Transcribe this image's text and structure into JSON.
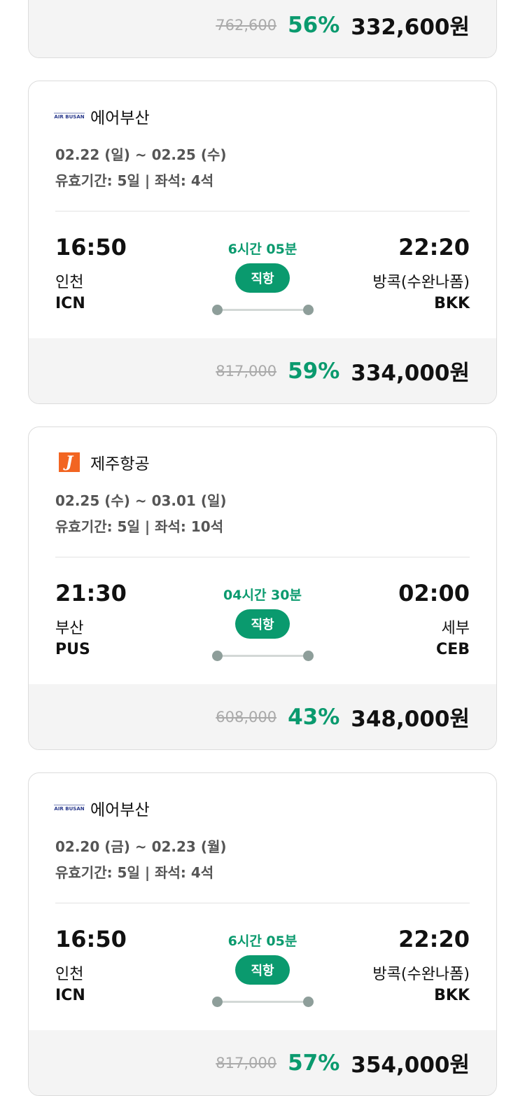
{
  "cards": [
    {
      "airline": "",
      "date": "",
      "validity": "",
      "dep_time": "",
      "dep_city": "",
      "dep_code": "",
      "duration": "",
      "type": "",
      "arr_time": "",
      "arr_city": "",
      "arr_code": "",
      "original_price": "762,600",
      "discount": "56%",
      "price": "332,600원"
    },
    {
      "airline": "에어부산",
      "logo": "AIR BUSAN",
      "date": "02.22 (일) ~ 02.25 (수)",
      "validity": "유효기간: 5일 | 좌석: 4석",
      "dep_time": "16:50",
      "dep_city": "인천",
      "dep_code": "ICN",
      "duration": "6시간 05분",
      "type": "직항",
      "arr_time": "22:20",
      "arr_city": "방콕(수완나폼)",
      "arr_code": "BKK",
      "original_price": "817,000",
      "discount": "59%",
      "price": "334,000원"
    },
    {
      "airline": "제주항공",
      "logo": "J",
      "date": "02.25 (수) ~ 03.01 (일)",
      "validity": "유효기간: 5일 | 좌석: 10석",
      "dep_time": "21:30",
      "dep_city": "부산",
      "dep_code": "PUS",
      "duration": "04시간 30분",
      "type": "직항",
      "arr_time": "02:00",
      "arr_city": "세부",
      "arr_code": "CEB",
      "original_price": "608,000",
      "discount": "43%",
      "price": "348,000원"
    },
    {
      "airline": "에어부산",
      "logo": "AIR BUSAN",
      "date": "02.20 (금) ~ 02.23 (월)",
      "validity": "유효기간: 5일 | 좌석: 4석",
      "dep_time": "16:50",
      "dep_city": "인천",
      "dep_code": "ICN",
      "duration": "6시간 05분",
      "type": "직항",
      "arr_time": "22:20",
      "arr_city": "방콕(수완나폼)",
      "arr_code": "BKK",
      "original_price": "817,000",
      "discount": "57%",
      "price": "354,000원"
    }
  ],
  "colors": {
    "accent": "#0a9a6e",
    "jeju": "#f26522",
    "airbusan": "#2a3a8c"
  }
}
